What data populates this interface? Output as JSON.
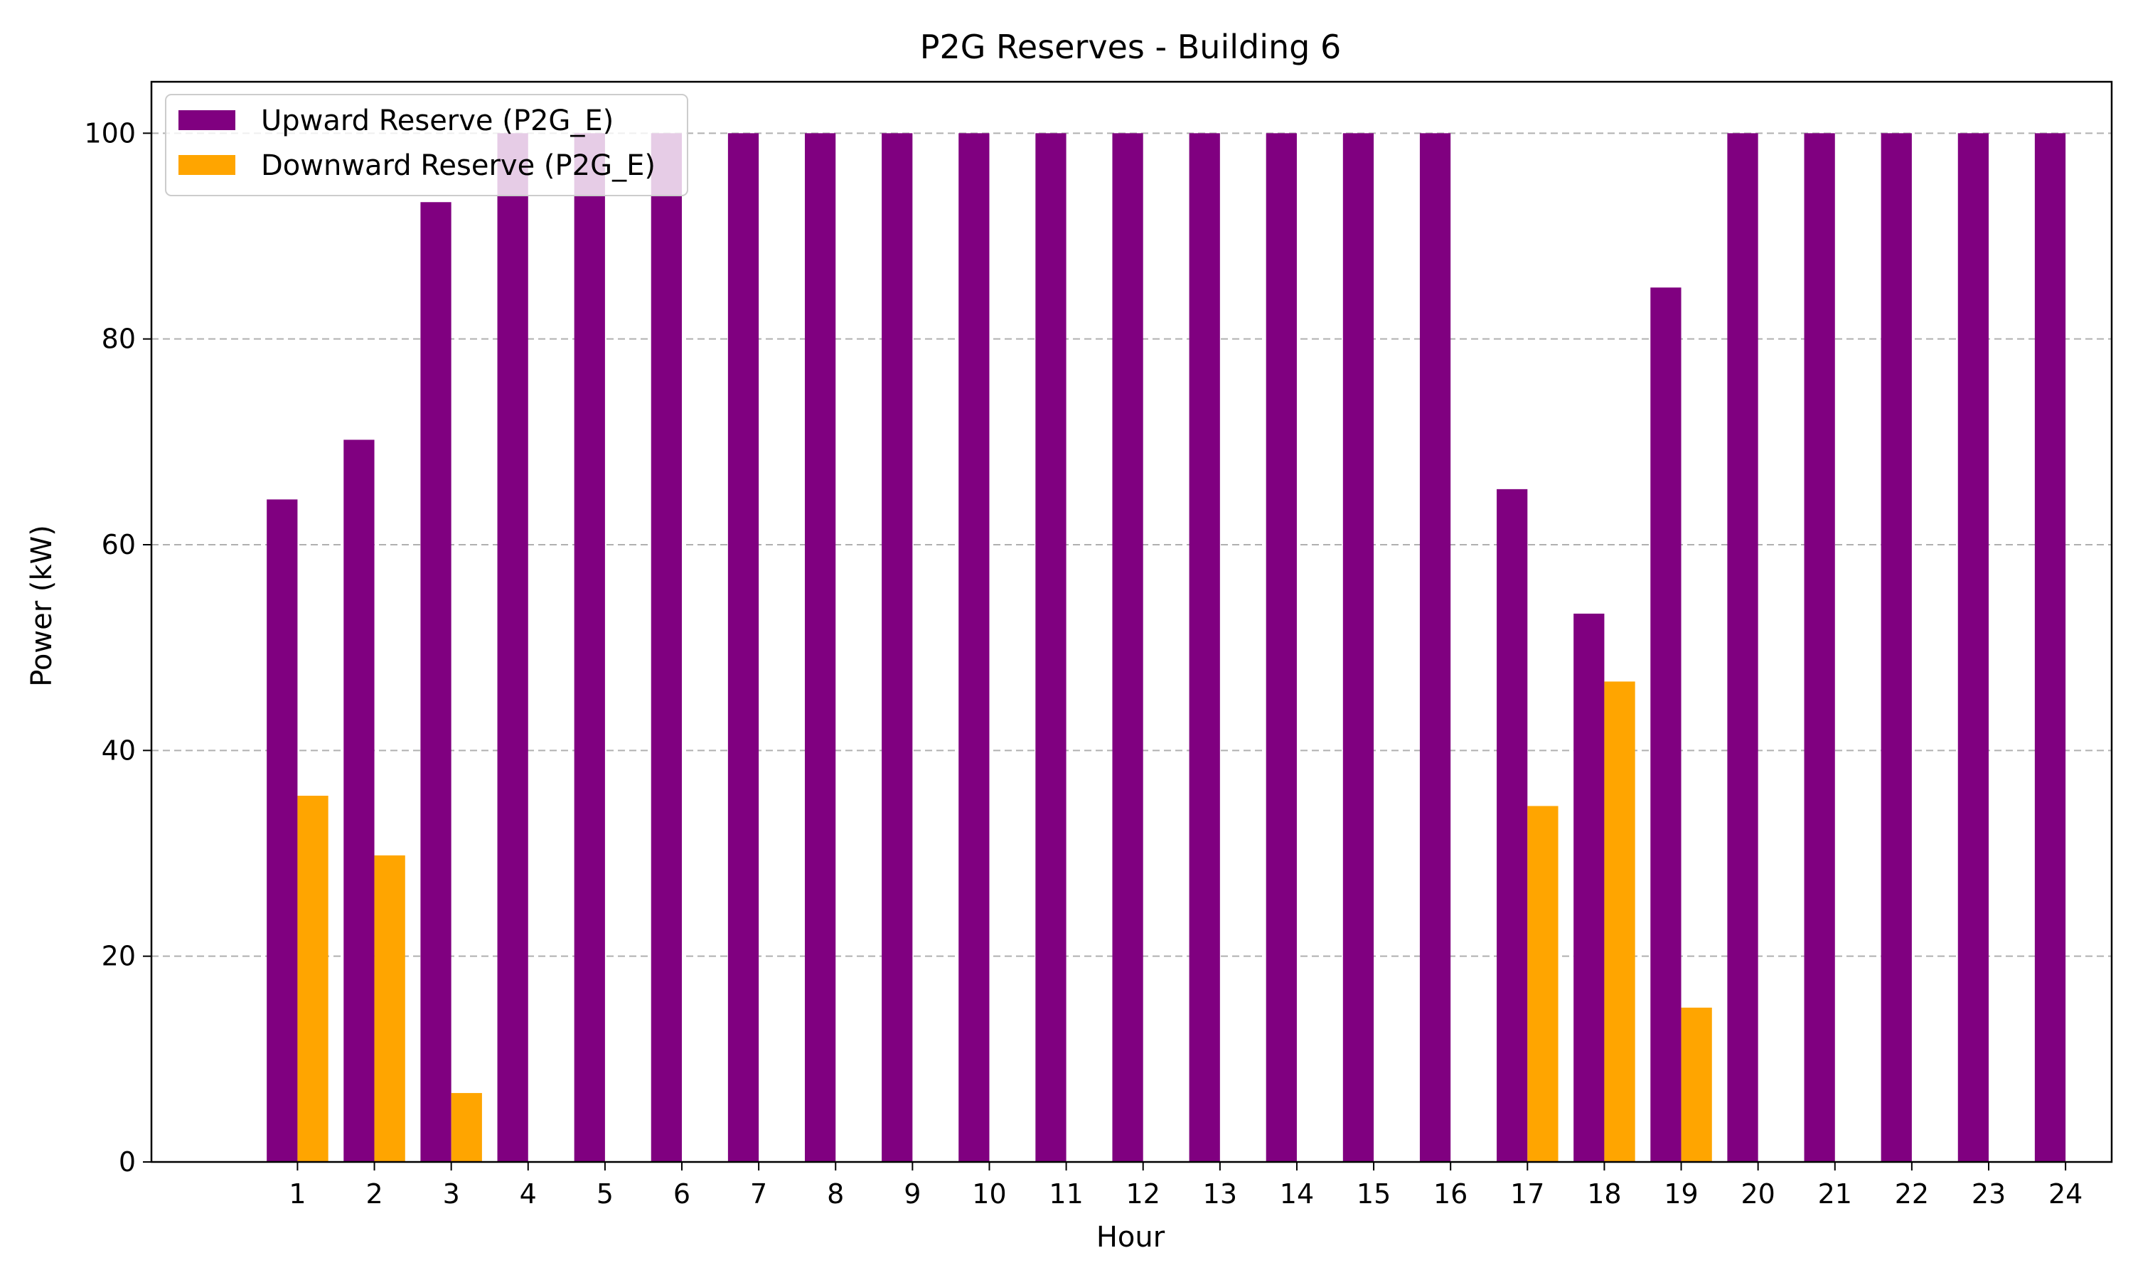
{
  "chart_data": {
    "type": "bar",
    "title": "P2G Reserves - Building 6",
    "xlabel": "Hour",
    "ylabel": "Power (kW)",
    "categories": [
      "1",
      "2",
      "3",
      "4",
      "5",
      "6",
      "7",
      "8",
      "9",
      "10",
      "11",
      "12",
      "13",
      "14",
      "15",
      "16",
      "17",
      "18",
      "19",
      "20",
      "21",
      "22",
      "23",
      "24"
    ],
    "series": [
      {
        "name": "Upward Reserve (P2G_E)",
        "color": "#800080",
        "values": [
          64.4,
          70.2,
          93.3,
          100,
          100,
          100,
          100,
          100,
          100,
          100,
          100,
          100,
          100,
          100,
          100,
          100,
          65.4,
          53.3,
          85.0,
          100,
          100,
          100,
          100,
          100
        ]
      },
      {
        "name": "Downward Reserve (P2G_E)",
        "color": "#FFA500",
        "values": [
          35.6,
          29.8,
          6.7,
          0,
          0,
          0,
          0,
          0,
          0,
          0,
          0,
          0,
          0,
          0,
          0,
          0,
          34.6,
          46.7,
          15.0,
          0,
          0,
          0,
          0,
          0
        ]
      }
    ],
    "yticks": [
      0,
      20,
      40,
      60,
      80,
      100
    ],
    "ylim": [
      0,
      105
    ],
    "xlim": [
      -0.9,
      24.6
    ],
    "grid": "y-dashed",
    "legend_position": "top-left"
  }
}
